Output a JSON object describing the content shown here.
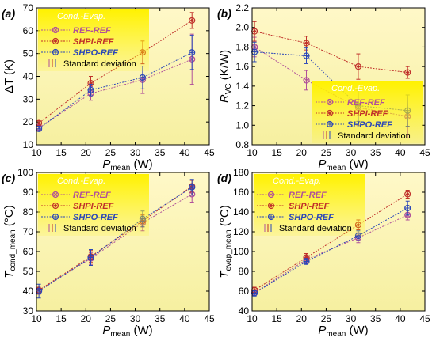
{
  "figure": {
    "panels": [
      "a",
      "b",
      "c",
      "d"
    ]
  },
  "colors": {
    "ref": "#b0509a",
    "shpi": "#c0302a",
    "shpo": "#2a46b8",
    "std": "#b88070",
    "plot_bg_top": "#fff8c8",
    "plot_bg_bottom": "#f6f0a0",
    "legend_bg": "#fff200",
    "legend_title_color": "#ffffff"
  },
  "legend": {
    "title": "Cond.-Evap.",
    "entries": [
      "REF-REF",
      "SHPI-REF",
      "SHPO-REF"
    ],
    "std_label": "Standard deviation"
  },
  "chart_data": [
    {
      "type": "line",
      "panel_label": "(a)",
      "xlabel": "P",
      "xlabel_sub": "mean",
      "xlabel_unit": "(W)",
      "ylabel": "ΔT (K)",
      "xlim": [
        10,
        45
      ],
      "ylim": [
        10,
        70
      ],
      "xticks": [
        10,
        15,
        20,
        25,
        30,
        35,
        40,
        45
      ],
      "yticks": [
        10,
        20,
        30,
        40,
        50,
        60,
        70
      ],
      "legend_position": "top-left",
      "x": [
        10.5,
        21,
        31.5,
        41.5
      ],
      "series": [
        {
          "name": "REF-REF",
          "values": [
            17.5,
            32.5,
            38.5,
            47.5
          ],
          "err": [
            1.5,
            3,
            6,
            11
          ]
        },
        {
          "name": "SHPI-REF",
          "values": [
            19.5,
            37,
            50.5,
            64.5
          ],
          "err": [
            1,
            3,
            5,
            3.5
          ]
        },
        {
          "name": "SHPO-REF",
          "values": [
            17,
            34,
            39.5,
            50.5
          ],
          "err": [
            1,
            2.5,
            5,
            7.5
          ]
        }
      ]
    },
    {
      "type": "line",
      "panel_label": "(b)",
      "xlabel": "P",
      "xlabel_sub": "mean",
      "xlabel_unit": "(W)",
      "ylabel": "R",
      "ylabel_sub": "VC",
      "ylabel_unit": "(K/W)",
      "xlim": [
        10,
        45
      ],
      "ylim": [
        0.8,
        2.2
      ],
      "xticks": [
        10,
        15,
        20,
        25,
        30,
        35,
        40,
        45
      ],
      "yticks": [
        0.8,
        1.0,
        1.2,
        1.4,
        1.6,
        1.8,
        2.0,
        2.2
      ],
      "legend_position": "bottom-right",
      "x": [
        10.5,
        21,
        31.5,
        41.5
      ],
      "series": [
        {
          "name": "REF-REF",
          "values": [
            1.8,
            1.46,
            1.18,
            1.09
          ],
          "err": [
            0.1,
            0.1,
            0.18,
            0.22
          ]
        },
        {
          "name": "SHPI-REF",
          "values": [
            1.96,
            1.84,
            1.6,
            1.54
          ],
          "err": [
            0.1,
            0.07,
            0.13,
            0.06
          ]
        },
        {
          "name": "SHPO-REF",
          "values": [
            1.75,
            1.71,
            1.2,
            1.15
          ],
          "err": [
            0.1,
            0.08,
            0.16,
            0.16
          ]
        }
      ]
    },
    {
      "type": "line",
      "panel_label": "(c)",
      "xlabel": "P",
      "xlabel_sub": "mean",
      "xlabel_unit": "(W)",
      "ylabel": "T",
      "ylabel_sub": "cond_mean",
      "ylabel_unit": "(°C)",
      "xlim": [
        10,
        45
      ],
      "ylim": [
        30,
        100
      ],
      "xticks": [
        10,
        15,
        20,
        25,
        30,
        35,
        40,
        45
      ],
      "yticks": [
        30,
        40,
        50,
        60,
        70,
        80,
        90,
        100
      ],
      "legend_position": "top-left",
      "x": [
        10.5,
        21,
        31.5,
        41.5
      ],
      "series": [
        {
          "name": "REF-REF",
          "values": [
            40.5,
            56.5,
            74.5,
            89
          ],
          "err": [
            2,
            3,
            4,
            4
          ]
        },
        {
          "name": "SHPI-REF",
          "values": [
            40.5,
            57.5,
            75.5,
            93
          ],
          "err": [
            2,
            3,
            3,
            3
          ]
        },
        {
          "name": "SHPO-REF",
          "values": [
            40,
            57,
            76.5,
            92.5
          ],
          "err": [
            3.5,
            4,
            4,
            4
          ]
        }
      ]
    },
    {
      "type": "line",
      "panel_label": "(d)",
      "xlabel": "P",
      "xlabel_sub": "mean",
      "xlabel_unit": "(W)",
      "ylabel": "T",
      "ylabel_sub": "evap_mean",
      "ylabel_unit": "(°C)",
      "xlim": [
        10,
        45
      ],
      "ylim": [
        40,
        180
      ],
      "xticks": [
        10,
        15,
        20,
        25,
        30,
        35,
        40,
        45
      ],
      "yticks": [
        40,
        60,
        80,
        100,
        120,
        140,
        160,
        180
      ],
      "legend_position": "top-left",
      "x": [
        10.5,
        21,
        31.5,
        41.5
      ],
      "series": [
        {
          "name": "REF-REF",
          "values": [
            58.5,
            92,
            114,
            137
          ],
          "err": [
            3,
            4,
            5,
            5
          ]
        },
        {
          "name": "SHPI-REF",
          "values": [
            61,
            94,
            127,
            158
          ],
          "err": [
            3,
            4,
            5,
            4
          ]
        },
        {
          "name": "SHPO-REF",
          "values": [
            58,
            90,
            116,
            144
          ],
          "err": [
            3,
            3,
            5,
            7
          ]
        }
      ]
    }
  ]
}
